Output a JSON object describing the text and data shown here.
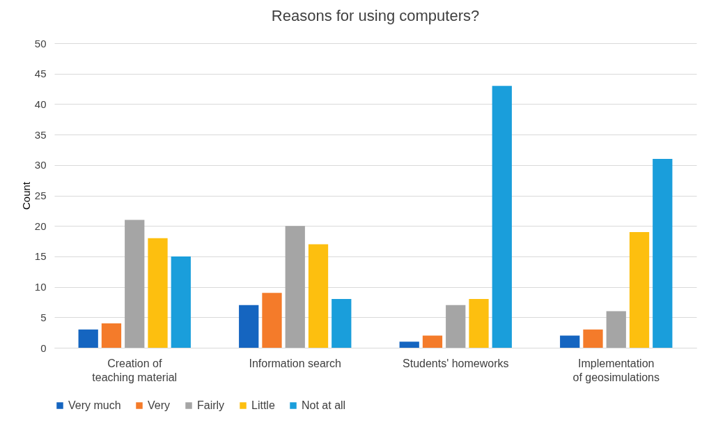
{
  "chart_data": {
    "type": "bar",
    "title": "Reasons for using computers?",
    "ylabel": "Count",
    "categories": [
      "Creation of teaching material",
      "Information search",
      "Students' homeworks",
      "Implementation of geosimulations"
    ],
    "series": [
      {
        "name": "Very much",
        "color": "#1565c0",
        "values": [
          3,
          7,
          1,
          2
        ]
      },
      {
        "name": "Very",
        "color": "#f47b2a",
        "values": [
          4,
          9,
          2,
          3
        ]
      },
      {
        "name": "Fairly",
        "color": "#a5a5a5",
        "values": [
          21,
          20,
          7,
          6
        ]
      },
      {
        "name": "Little",
        "color": "#fdbf0f",
        "values": [
          18,
          17,
          8,
          19
        ]
      },
      {
        "name": "Not at all",
        "color": "#1a9edb",
        "values": [
          15,
          8,
          43,
          31
        ]
      }
    ],
    "ylim": [
      0,
      50
    ],
    "yticks": [
      0,
      5,
      10,
      15,
      20,
      25,
      30,
      35,
      40,
      45,
      50
    ],
    "grid": "y",
    "legend": "bottom"
  }
}
